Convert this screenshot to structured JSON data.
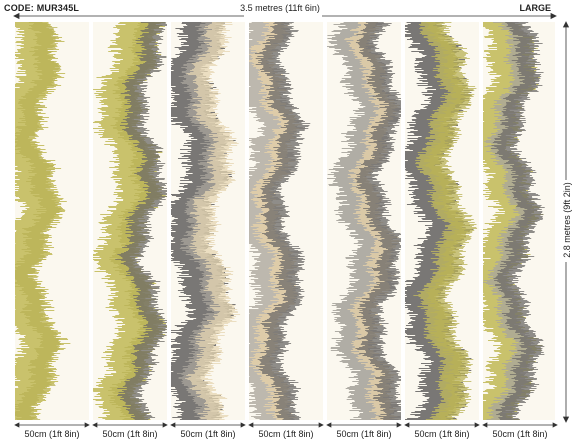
{
  "header": {
    "code": "CODE: MUR345L",
    "width_dimension": "3.5 metres (11ft 6in)",
    "size_label": "LARGE"
  },
  "height_dimension": "2.8 metres (9ft 2in)",
  "panels": [
    {
      "label": "50cm (1ft 8in)",
      "palette": [
        "#c4bd5e",
        "#b9b256"
      ]
    },
    {
      "label": "50cm (1ft 8in)",
      "palette": [
        "#c4bd5e",
        "#b9b256",
        "#6d6b66"
      ]
    },
    {
      "label": "50cm (1ft 8in)",
      "palette": [
        "#6c6a68",
        "#a9a59c",
        "#e6d6b2"
      ]
    },
    {
      "label": "50cm (1ft 8in)",
      "palette": [
        "#b7b2a8",
        "#e9d3a8",
        "#6c6a68"
      ]
    },
    {
      "label": "50cm (1ft 8in)",
      "palette": [
        "#a8a59e",
        "#e9d3a8",
        "#6c6a68"
      ]
    },
    {
      "label": "50cm (1ft 8in)",
      "palette": [
        "#6c6a68",
        "#c4bd5e",
        "#b9b256"
      ]
    },
    {
      "label": "50cm (1ft 8in)",
      "palette": [
        "#c4bd5e",
        "#a8a59e",
        "#6c6a68"
      ]
    }
  ],
  "colors": {
    "background": "#fbf8ef",
    "olive": "#c4bd5e",
    "charcoal": "#6c6a68",
    "grey": "#a8a59e",
    "cream": "#e9d3a8"
  }
}
